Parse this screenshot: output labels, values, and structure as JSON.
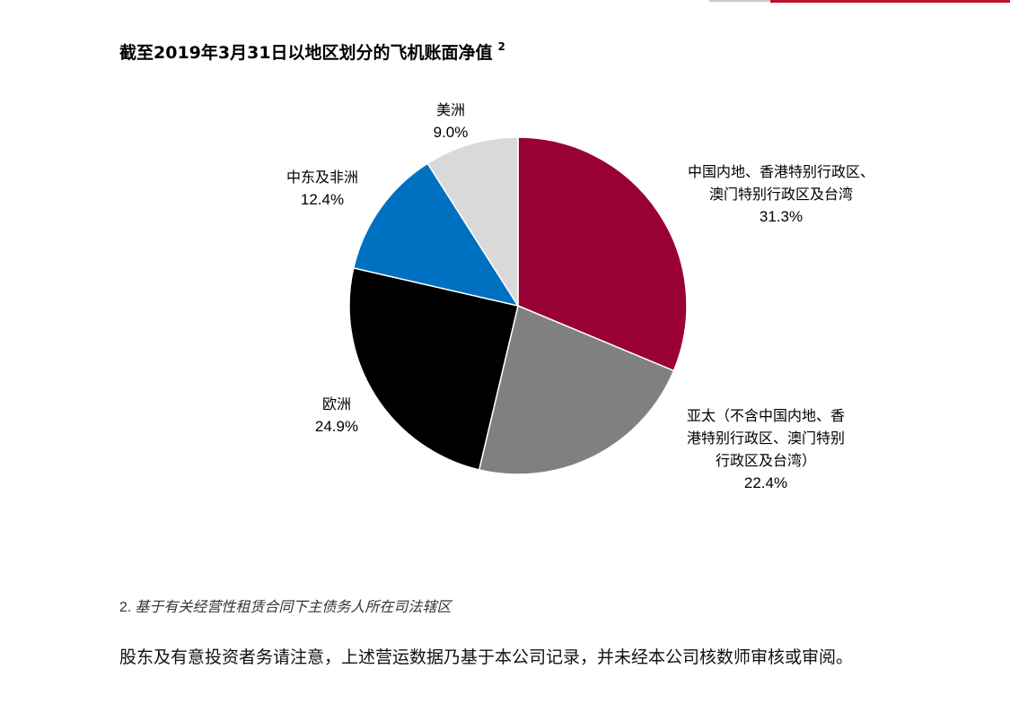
{
  "page": {
    "title": "截至2019年3月31日以地区划分的飞机账面净值",
    "title_note": "2",
    "footnote_num": "2.",
    "footnote_text": "基于有关经营性租赁合同下主债务人所在司法辖区",
    "disclaimer": "股东及有意投资者务请注意，上述营运数据乃基于本公司记录，并未经本公司核数师审核或审阅。"
  },
  "chart_data": {
    "type": "pie",
    "title": "截至2019年3月31日以地区划分的飞机账面净值",
    "slices": [
      {
        "label": "中国内地、香港特别行政区、澳门特别行政区及台湾",
        "label_lines": [
          "中国内地、香港特别行政区、",
          "澳门特别行政区及台湾"
        ],
        "value": 31.3,
        "value_label": "31.3%",
        "color": "#990033"
      },
      {
        "label": "亚太（不含中国内地、香港特别行政区、澳门特别行政区及台湾）",
        "label_lines": [
          "亚太（不含中国内地、香",
          "港特别行政区、澳门特别",
          "行政区及台湾）"
        ],
        "value": 22.4,
        "value_label": "22.4%",
        "color": "#808080"
      },
      {
        "label": "欧洲",
        "label_lines": [
          "欧洲"
        ],
        "value": 24.9,
        "value_label": "24.9%",
        "color": "#000000"
      },
      {
        "label": "中东及非洲",
        "label_lines": [
          "中东及非洲"
        ],
        "value": 12.4,
        "value_label": "12.4%",
        "color": "#0070c0"
      },
      {
        "label": "美洲",
        "label_lines": [
          "美洲"
        ],
        "value": 9.0,
        "value_label": "9.0%",
        "color": "#d9d9d9"
      }
    ],
    "start_angle": "12 o'clock",
    "direction": "clockwise"
  }
}
